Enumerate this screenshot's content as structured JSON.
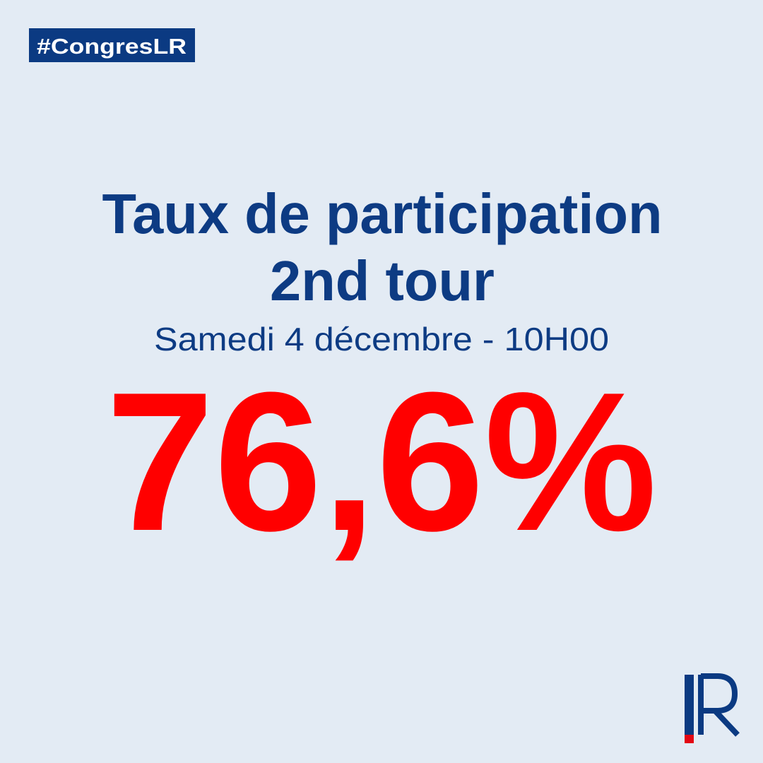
{
  "tag": "#CongresLR",
  "title": {
    "line1": "Taux de participation",
    "line2": "2nd tour"
  },
  "subtitle": "Samedi 4 décembre - 10H00",
  "figure": "76,6%"
}
